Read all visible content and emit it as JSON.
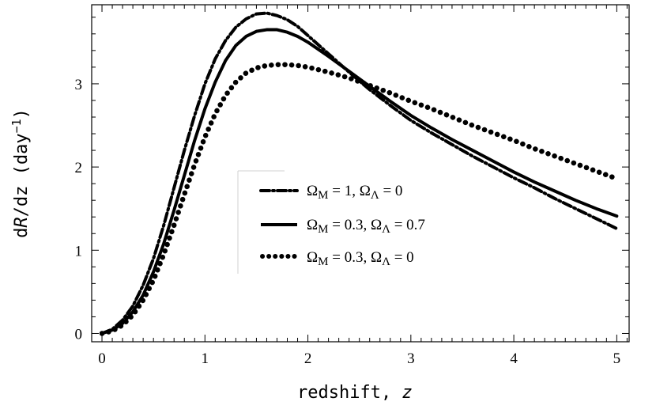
{
  "chart_data": {
    "type": "line",
    "title": "",
    "xlabel": "redshift, z",
    "ylabel": "dR/dz (day⁻¹)",
    "xlim": [
      -0.1,
      5.12
    ],
    "ylim": [
      -0.1,
      3.95
    ],
    "xticks": [
      "0",
      "1",
      "2",
      "3",
      "4",
      "5"
    ],
    "yticks": [
      "0",
      "1",
      "2",
      "3"
    ],
    "grid": false,
    "legend_position": "center-left",
    "series": [
      {
        "name": "ΩM = 1, ΩΛ = 0",
        "style": "dashdot",
        "x": [
          0,
          0.1,
          0.2,
          0.3,
          0.4,
          0.5,
          0.6,
          0.7,
          0.8,
          0.9,
          1.0,
          1.1,
          1.2,
          1.3,
          1.4,
          1.5,
          1.6,
          1.7,
          1.8,
          1.9,
          2.0,
          2.2,
          2.4,
          2.6,
          2.8,
          3.0,
          3.2,
          3.4,
          3.6,
          3.8,
          4.0,
          4.2,
          4.4,
          4.6,
          4.8,
          5.0
        ],
        "y": [
          0.0,
          0.05,
          0.16,
          0.33,
          0.58,
          0.9,
          1.3,
          1.75,
          2.2,
          2.62,
          3.0,
          3.3,
          3.52,
          3.68,
          3.78,
          3.84,
          3.85,
          3.82,
          3.77,
          3.69,
          3.58,
          3.36,
          3.14,
          2.93,
          2.74,
          2.56,
          2.41,
          2.27,
          2.13,
          2.0,
          1.87,
          1.75,
          1.62,
          1.5,
          1.38,
          1.26
        ]
      },
      {
        "name": "ΩM = 0.3, ΩΛ = 0.7",
        "style": "solid",
        "x": [
          0,
          0.1,
          0.2,
          0.3,
          0.4,
          0.5,
          0.6,
          0.7,
          0.8,
          0.9,
          1.0,
          1.1,
          1.2,
          1.3,
          1.4,
          1.5,
          1.6,
          1.7,
          1.8,
          1.9,
          2.0,
          2.2,
          2.4,
          2.6,
          2.8,
          3.0,
          3.2,
          3.4,
          3.6,
          3.8,
          4.0,
          4.2,
          4.4,
          4.6,
          4.8,
          5.0
        ],
        "y": [
          0.0,
          0.04,
          0.12,
          0.26,
          0.46,
          0.74,
          1.08,
          1.48,
          1.9,
          2.32,
          2.7,
          3.02,
          3.28,
          3.46,
          3.57,
          3.63,
          3.65,
          3.65,
          3.62,
          3.57,
          3.5,
          3.33,
          3.15,
          2.97,
          2.79,
          2.62,
          2.47,
          2.33,
          2.2,
          2.07,
          1.94,
          1.82,
          1.71,
          1.6,
          1.5,
          1.41
        ]
      },
      {
        "name": "ΩM = 0.3, ΩΛ = 0",
        "style": "dotted",
        "x": [
          0,
          0.1,
          0.2,
          0.3,
          0.4,
          0.5,
          0.6,
          0.7,
          0.8,
          0.9,
          1.0,
          1.1,
          1.2,
          1.3,
          1.4,
          1.5,
          1.6,
          1.7,
          1.8,
          1.9,
          2.0,
          2.2,
          2.4,
          2.6,
          2.8,
          3.0,
          3.2,
          3.4,
          3.6,
          3.8,
          4.0,
          4.2,
          4.4,
          4.6,
          4.8,
          5.0
        ],
        "y": [
          0.0,
          0.03,
          0.1,
          0.22,
          0.4,
          0.64,
          0.95,
          1.3,
          1.67,
          2.03,
          2.36,
          2.64,
          2.86,
          3.02,
          3.13,
          3.19,
          3.22,
          3.23,
          3.23,
          3.22,
          3.2,
          3.14,
          3.07,
          2.98,
          2.89,
          2.79,
          2.7,
          2.6,
          2.5,
          2.41,
          2.32,
          2.22,
          2.13,
          2.04,
          1.95,
          1.86
        ]
      }
    ],
    "legend": [
      {
        "omega_m": "1",
        "omega_l": "0"
      },
      {
        "omega_m": "0.3",
        "omega_l": "0.7"
      },
      {
        "omega_m": "0.3",
        "omega_l": "0"
      }
    ]
  }
}
